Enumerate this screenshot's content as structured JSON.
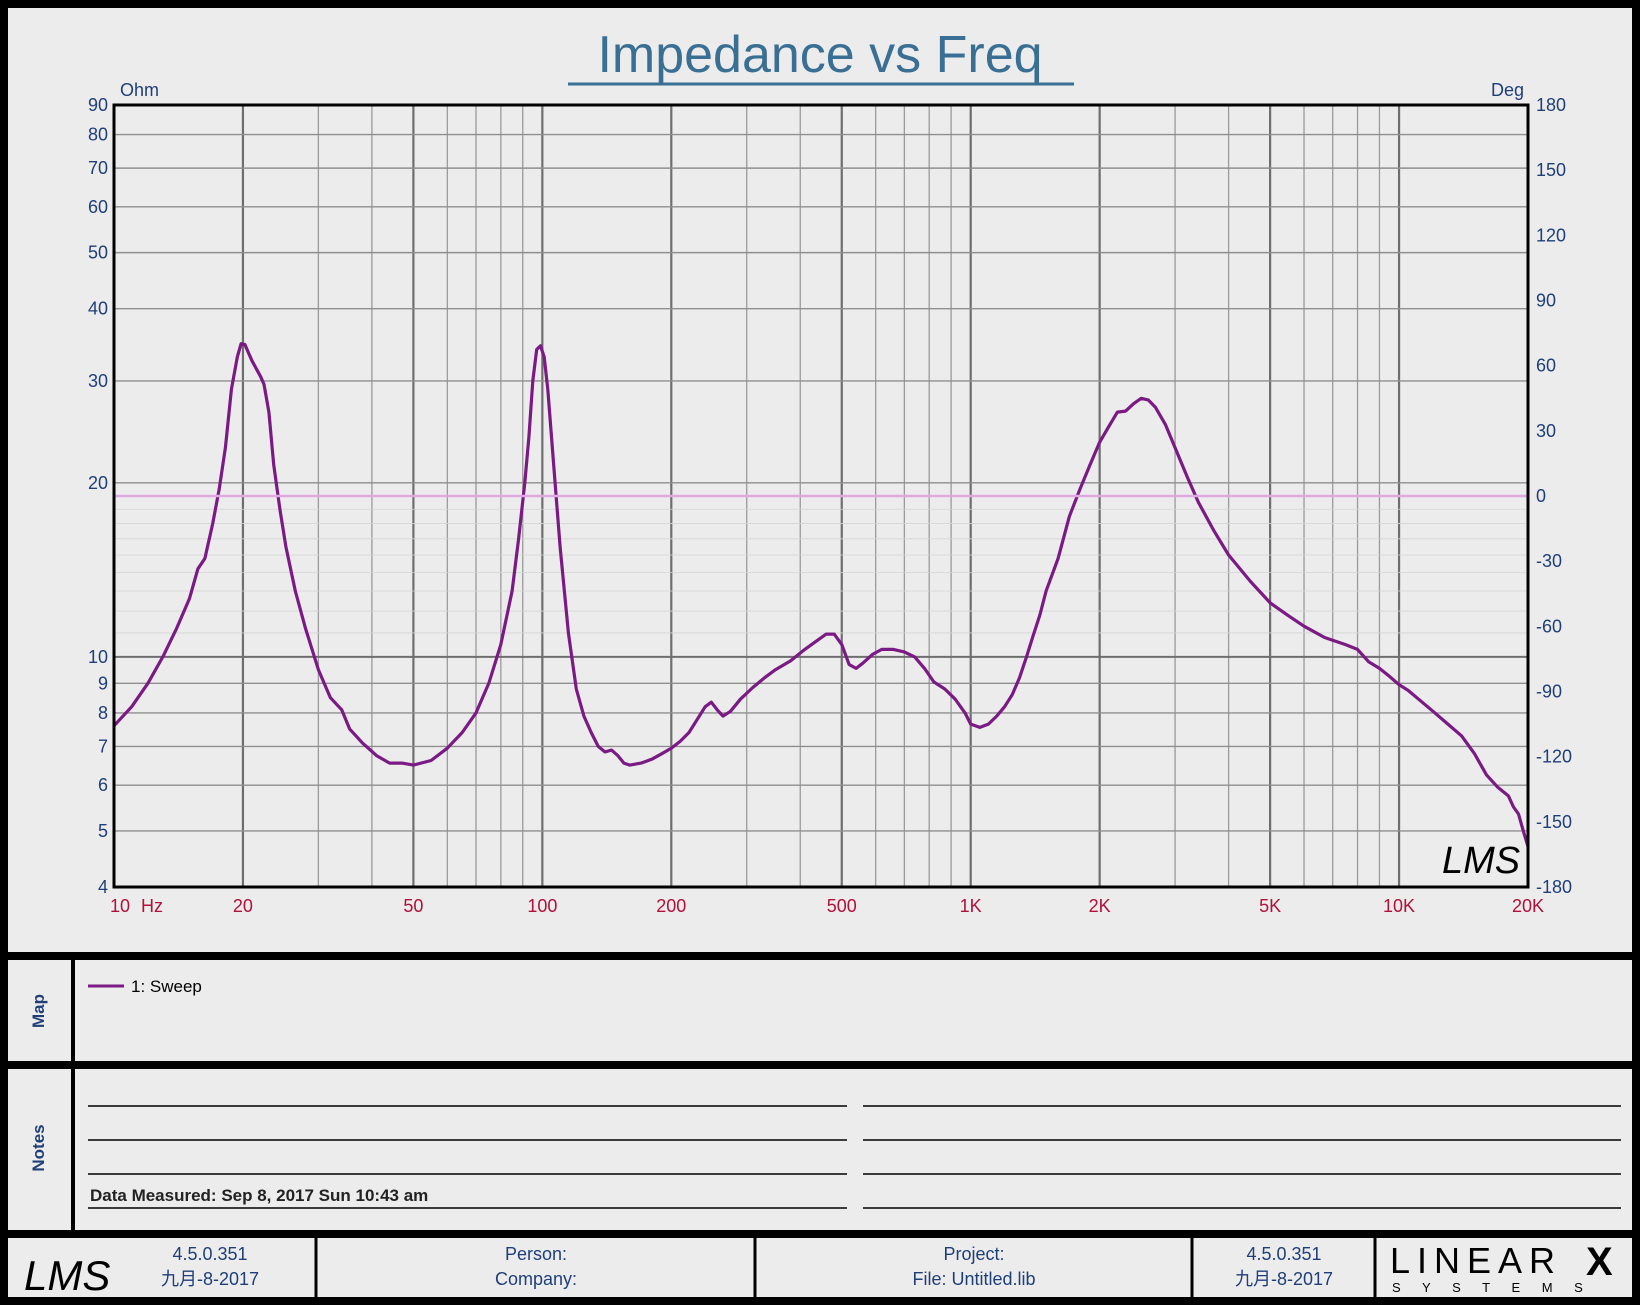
{
  "chart_data": {
    "type": "line",
    "title": "Impedance vs Freq",
    "xlabel": "Hz",
    "ylabel_left": "Ohm",
    "ylabel_right": "Deg",
    "xscale": "log",
    "yscale_left": "log",
    "xlim": [
      10,
      20000
    ],
    "ylim_left": [
      4,
      90
    ],
    "ylim_right": [
      -180,
      180
    ],
    "grid": true,
    "x_tick_labels": [
      {
        "value": 10,
        "label": "10"
      },
      {
        "value": 20,
        "label": "20"
      },
      {
        "value": 50,
        "label": "50"
      },
      {
        "value": 100,
        "label": "100"
      },
      {
        "value": 200,
        "label": "200"
      },
      {
        "value": 500,
        "label": "500"
      },
      {
        "value": 1000,
        "label": "1K"
      },
      {
        "value": 2000,
        "label": "2K"
      },
      {
        "value": 5000,
        "label": "5K"
      },
      {
        "value": 10000,
        "label": "10K"
      },
      {
        "value": 20000,
        "label": "20K"
      }
    ],
    "y_left_tick_labels": [
      {
        "value": 4,
        "label": "4"
      },
      {
        "value": 5,
        "label": "5"
      },
      {
        "value": 6,
        "label": "6"
      },
      {
        "value": 7,
        "label": "7"
      },
      {
        "value": 8,
        "label": "8"
      },
      {
        "value": 9,
        "label": "9"
      },
      {
        "value": 10,
        "label": "10"
      },
      {
        "value": 20,
        "label": "20"
      },
      {
        "value": 30,
        "label": "30"
      },
      {
        "value": 40,
        "label": "40"
      },
      {
        "value": 50,
        "label": "50"
      },
      {
        "value": 60,
        "label": "60"
      },
      {
        "value": 70,
        "label": "70"
      },
      {
        "value": 80,
        "label": "80"
      },
      {
        "value": 90,
        "label": "90"
      }
    ],
    "y_right_tick_labels": [
      {
        "value": 180,
        "label": "180"
      },
      {
        "value": 150,
        "label": "150"
      },
      {
        "value": 120,
        "label": "120"
      },
      {
        "value": 90,
        "label": "90"
      },
      {
        "value": 60,
        "label": "60"
      },
      {
        "value": 30,
        "label": "30"
      },
      {
        "value": 0,
        "label": "0"
      },
      {
        "value": -30,
        "label": "-30"
      },
      {
        "value": -60,
        "label": "-60"
      },
      {
        "value": -90,
        "label": "-90"
      },
      {
        "value": -120,
        "label": "-120"
      },
      {
        "value": -150,
        "label": "-150"
      },
      {
        "value": -180,
        "label": "-180"
      }
    ],
    "series": [
      {
        "name": "1: Sweep",
        "color": "#7b1a85",
        "axis": "left",
        "points": [
          [
            10,
            7.6
          ],
          [
            11,
            8.2
          ],
          [
            12,
            9.0
          ],
          [
            13,
            10.0
          ],
          [
            14,
            11.2
          ],
          [
            15,
            12.6
          ],
          [
            15.7,
            14.2
          ],
          [
            16.3,
            14.8
          ],
          [
            17,
            17.0
          ],
          [
            17.6,
            19.5
          ],
          [
            18.2,
            23.0
          ],
          [
            18.8,
            29.0
          ],
          [
            19.4,
            33.0
          ],
          [
            19.8,
            34.8
          ],
          [
            20.2,
            34.7
          ],
          [
            21,
            32.5
          ],
          [
            22,
            30.5
          ],
          [
            22.4,
            29.6
          ],
          [
            23,
            26.5
          ],
          [
            23.6,
            21.5
          ],
          [
            24.4,
            18.0
          ],
          [
            25.2,
            15.5
          ],
          [
            26.5,
            13.0
          ],
          [
            28,
            11.2
          ],
          [
            30,
            9.5
          ],
          [
            32,
            8.5
          ],
          [
            34,
            8.1
          ],
          [
            35.5,
            7.5
          ],
          [
            38,
            7.1
          ],
          [
            41,
            6.75
          ],
          [
            44,
            6.55
          ],
          [
            47,
            6.55
          ],
          [
            50,
            6.5
          ],
          [
            55,
            6.62
          ],
          [
            60,
            6.95
          ],
          [
            65,
            7.4
          ],
          [
            70,
            8.0
          ],
          [
            75,
            9.0
          ],
          [
            80,
            10.5
          ],
          [
            85,
            13.0
          ],
          [
            88,
            16.0
          ],
          [
            91,
            20.0
          ],
          [
            93,
            24.0
          ],
          [
            95,
            30.0
          ],
          [
            97,
            34.0
          ],
          [
            99,
            34.5
          ],
          [
            101,
            33.0
          ],
          [
            103,
            29.0
          ],
          [
            106,
            22.0
          ],
          [
            110,
            15.5
          ],
          [
            115,
            11.0
          ],
          [
            120,
            8.8
          ],
          [
            125,
            7.9
          ],
          [
            130,
            7.4
          ],
          [
            135,
            7.0
          ],
          [
            140,
            6.85
          ],
          [
            145,
            6.9
          ],
          [
            150,
            6.75
          ],
          [
            155,
            6.55
          ],
          [
            160,
            6.5
          ],
          [
            170,
            6.55
          ],
          [
            180,
            6.65
          ],
          [
            190,
            6.8
          ],
          [
            200,
            6.95
          ],
          [
            210,
            7.15
          ],
          [
            220,
            7.4
          ],
          [
            230,
            7.8
          ],
          [
            240,
            8.2
          ],
          [
            248,
            8.35
          ],
          [
            256,
            8.1
          ],
          [
            264,
            7.9
          ],
          [
            275,
            8.05
          ],
          [
            290,
            8.45
          ],
          [
            310,
            8.85
          ],
          [
            330,
            9.2
          ],
          [
            350,
            9.5
          ],
          [
            380,
            9.85
          ],
          [
            410,
            10.3
          ],
          [
            440,
            10.7
          ],
          [
            460,
            10.95
          ],
          [
            480,
            10.95
          ],
          [
            500,
            10.5
          ],
          [
            520,
            9.7
          ],
          [
            540,
            9.55
          ],
          [
            560,
            9.75
          ],
          [
            590,
            10.1
          ],
          [
            620,
            10.3
          ],
          [
            660,
            10.3
          ],
          [
            700,
            10.2
          ],
          [
            740,
            10.0
          ],
          [
            780,
            9.55
          ],
          [
            820,
            9.05
          ],
          [
            870,
            8.8
          ],
          [
            920,
            8.45
          ],
          [
            970,
            8.0
          ],
          [
            1000,
            7.65
          ],
          [
            1050,
            7.55
          ],
          [
            1100,
            7.65
          ],
          [
            1150,
            7.9
          ],
          [
            1200,
            8.2
          ],
          [
            1250,
            8.6
          ],
          [
            1300,
            9.2
          ],
          [
            1350,
            10.0
          ],
          [
            1400,
            10.9
          ],
          [
            1450,
            11.8
          ],
          [
            1500,
            13.0
          ],
          [
            1600,
            14.8
          ],
          [
            1700,
            17.5
          ],
          [
            1800,
            19.5
          ],
          [
            1900,
            21.5
          ],
          [
            2000,
            23.5
          ],
          [
            2100,
            25.0
          ],
          [
            2200,
            26.5
          ],
          [
            2300,
            26.6
          ],
          [
            2400,
            27.4
          ],
          [
            2500,
            28.0
          ],
          [
            2600,
            27.8
          ],
          [
            2700,
            27.0
          ],
          [
            2850,
            25.2
          ],
          [
            3000,
            23.0
          ],
          [
            3200,
            20.5
          ],
          [
            3400,
            18.5
          ],
          [
            3700,
            16.5
          ],
          [
            4000,
            15.0
          ],
          [
            4500,
            13.5
          ],
          [
            5000,
            12.4
          ],
          [
            5500,
            11.8
          ],
          [
            6000,
            11.3
          ],
          [
            6700,
            10.8
          ],
          [
            7500,
            10.5
          ],
          [
            8000,
            10.3
          ],
          [
            8500,
            9.8
          ],
          [
            9000,
            9.55
          ],
          [
            9500,
            9.25
          ],
          [
            10000,
            8.95
          ],
          [
            10500,
            8.75
          ],
          [
            11000,
            8.5
          ],
          [
            12000,
            8.05
          ],
          [
            13000,
            7.65
          ],
          [
            14000,
            7.3
          ],
          [
            15000,
            6.8
          ],
          [
            16000,
            6.25
          ],
          [
            17000,
            5.95
          ],
          [
            18000,
            5.75
          ],
          [
            18500,
            5.5
          ],
          [
            19000,
            5.35
          ],
          [
            19500,
            5.0
          ],
          [
            20000,
            4.7
          ]
        ]
      },
      {
        "name": "",
        "color": "#e0a8e0",
        "axis": "right",
        "points": [
          [
            10,
            0
          ],
          [
            20000,
            0
          ]
        ]
      }
    ],
    "legend": {
      "placement": "map-panel-top-left",
      "entries": [
        "1: Sweep"
      ]
    },
    "watermark": "LMS"
  },
  "panels": {
    "map_label": "Map",
    "notes_label": "Notes",
    "data_measured": "Data Measured: Sep 8, 2017 Sun 10:43 am"
  },
  "footer": {
    "logo_left": "LMS",
    "left_version": "4.5.0.351",
    "left_date": "九月-8-2017",
    "person_label": "Person:",
    "company_label": "Company:",
    "project_label": "Project:",
    "file_label": "File: Untitled.lib",
    "right_version": "4.5.0.351",
    "right_date": "九月-8-2017",
    "brand_main": "LINEAR",
    "brand_x": "X",
    "brand_sub": "S Y S T E M S"
  },
  "colors": {
    "title": "#3a6f94",
    "axis_text_blue": "#1f3f78",
    "axis_text_red": "#b0103a",
    "curve": "#7b1a85",
    "zero_line": "#e0a8e0",
    "grid": "#8a8a8a",
    "frame": "#000000"
  }
}
